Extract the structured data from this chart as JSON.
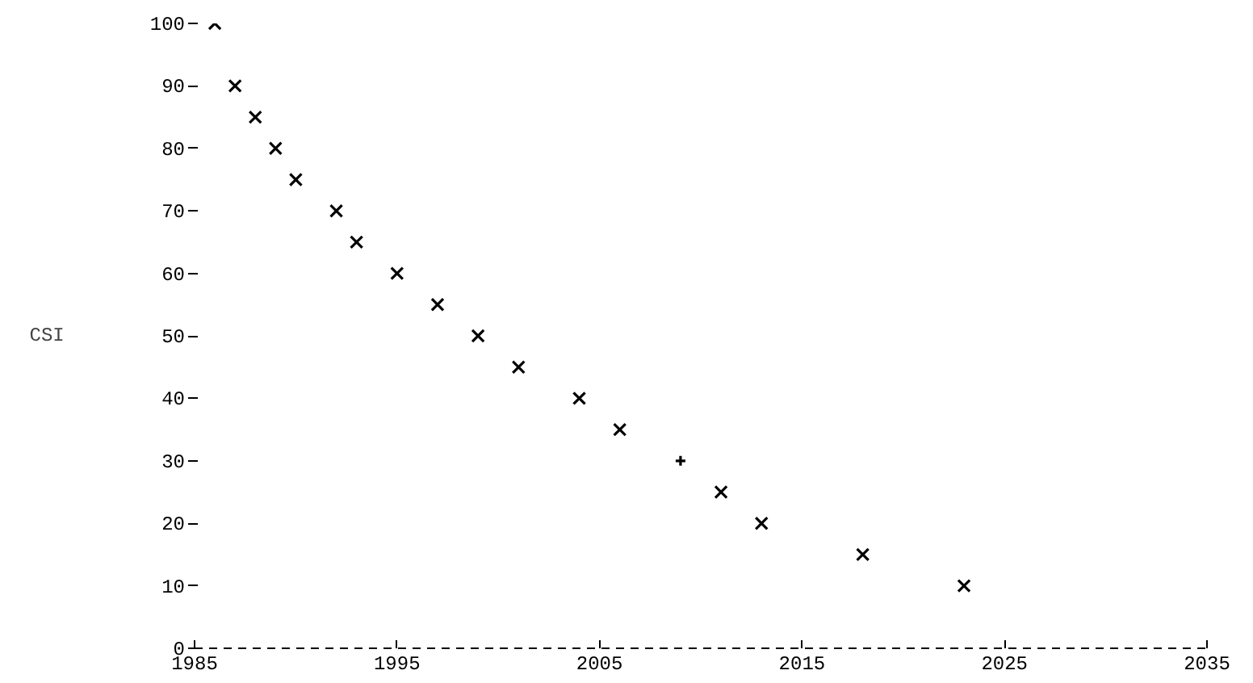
{
  "chart_data": {
    "type": "scatter",
    "ylabel": "CSI",
    "xlim": [
      1985,
      2035
    ],
    "xticks": [
      1985,
      1995,
      2005,
      2015,
      2025,
      2035
    ],
    "ylim": [
      0,
      100
    ],
    "yticks": [
      0,
      10,
      20,
      30,
      40,
      50,
      60,
      70,
      80,
      90,
      100
    ],
    "series": [
      {
        "color": "#000000",
        "marker": "x",
        "x": [
          1986,
          1987,
          1988,
          1989,
          1990,
          1992,
          1993,
          1995,
          1997,
          1999,
          2001,
          2004,
          2006,
          2011,
          2013,
          2018,
          2023
        ],
        "values": [
          100,
          90,
          85,
          80,
          75,
          70,
          65,
          60,
          55,
          50,
          45,
          40,
          35,
          25,
          20,
          15,
          10
        ]
      },
      {
        "color": "#000000",
        "marker": "cross",
        "x": [
          2009
        ],
        "values": [
          30
        ]
      }
    ]
  }
}
